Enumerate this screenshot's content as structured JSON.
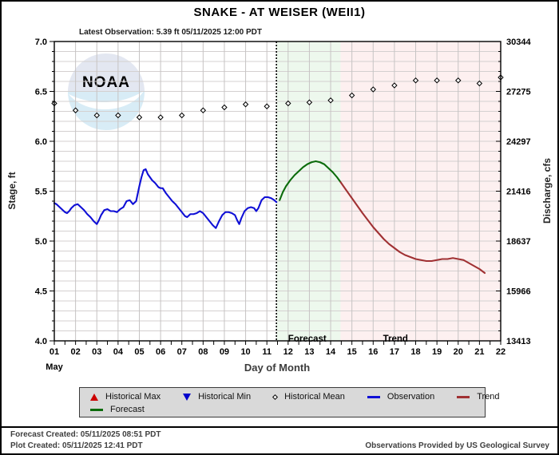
{
  "header": {
    "title": "SNAKE - AT WEISER  (WEII1)",
    "latest_observation": "Latest Observation: 5.39 ft 05/11/2025 12:00 PDT"
  },
  "chart_data": {
    "type": "line",
    "title": "SNAKE - AT WEISER  (WEII1)",
    "xlabel": "Day of Month",
    "month_label": "May",
    "ylabel_left": "Stage, ft",
    "ylabel_right": "Discharge, cfs",
    "xlim": [
      1,
      22
    ],
    "ylim": [
      4.0,
      7.0
    ],
    "grid": true,
    "x_tick_labels": [
      "01",
      "02",
      "03",
      "04",
      "05",
      "06",
      "07",
      "08",
      "09",
      "10",
      "11",
      "12",
      "13",
      "14",
      "15",
      "16",
      "17",
      "18",
      "19",
      "20",
      "21",
      "22"
    ],
    "stage_tick_labels": [
      "7.0",
      "6.5",
      "6.0",
      "5.5",
      "5.0",
      "4.5",
      "4.0"
    ],
    "discharge_tick_labels": [
      "30344",
      "27275",
      "24297",
      "21416",
      "18637",
      "15966",
      "13413"
    ],
    "minor_stage_step": 0.1,
    "minor_day_step": 0.5,
    "divider_day": 11.45,
    "regions": [
      {
        "name": "forecast",
        "label": "Forecast",
        "start": 11.45,
        "end": 14.47,
        "label_day": 12.9,
        "color": "#edf8ed"
      },
      {
        "name": "trend",
        "label": "Trend",
        "start": 14.47,
        "end": 22,
        "label_day": 17.05,
        "color": "#fdf0f0"
      }
    ],
    "series": [
      {
        "name": "Observation",
        "type": "line",
        "color": "#0f0fd6",
        "points": [
          [
            1.0,
            5.38
          ],
          [
            1.1,
            5.37
          ],
          [
            1.2,
            5.35
          ],
          [
            1.35,
            5.32
          ],
          [
            1.5,
            5.29
          ],
          [
            1.6,
            5.28
          ],
          [
            1.7,
            5.3
          ],
          [
            1.8,
            5.33
          ],
          [
            1.95,
            5.36
          ],
          [
            2.1,
            5.37
          ],
          [
            2.25,
            5.34
          ],
          [
            2.4,
            5.31
          ],
          [
            2.55,
            5.27
          ],
          [
            2.7,
            5.24
          ],
          [
            2.85,
            5.2
          ],
          [
            3.0,
            5.17
          ],
          [
            3.1,
            5.21
          ],
          [
            3.2,
            5.26
          ],
          [
            3.35,
            5.31
          ],
          [
            3.5,
            5.32
          ],
          [
            3.65,
            5.3
          ],
          [
            3.8,
            5.3
          ],
          [
            3.95,
            5.29
          ],
          [
            4.1,
            5.32
          ],
          [
            4.25,
            5.34
          ],
          [
            4.4,
            5.4
          ],
          [
            4.55,
            5.41
          ],
          [
            4.7,
            5.37
          ],
          [
            4.85,
            5.4
          ],
          [
            5.0,
            5.55
          ],
          [
            5.1,
            5.64
          ],
          [
            5.2,
            5.71
          ],
          [
            5.3,
            5.72
          ],
          [
            5.4,
            5.67
          ],
          [
            5.5,
            5.64
          ],
          [
            5.6,
            5.61
          ],
          [
            5.75,
            5.58
          ],
          [
            5.9,
            5.54
          ],
          [
            6.0,
            5.53
          ],
          [
            6.1,
            5.53
          ],
          [
            6.25,
            5.48
          ],
          [
            6.4,
            5.44
          ],
          [
            6.55,
            5.4
          ],
          [
            6.7,
            5.37
          ],
          [
            6.85,
            5.33
          ],
          [
            7.0,
            5.29
          ],
          [
            7.15,
            5.25
          ],
          [
            7.25,
            5.24
          ],
          [
            7.4,
            5.27
          ],
          [
            7.55,
            5.27
          ],
          [
            7.7,
            5.28
          ],
          [
            7.85,
            5.3
          ],
          [
            8.0,
            5.28
          ],
          [
            8.15,
            5.24
          ],
          [
            8.3,
            5.2
          ],
          [
            8.45,
            5.16
          ],
          [
            8.6,
            5.13
          ],
          [
            8.75,
            5.2
          ],
          [
            8.9,
            5.26
          ],
          [
            9.05,
            5.29
          ],
          [
            9.2,
            5.29
          ],
          [
            9.35,
            5.28
          ],
          [
            9.5,
            5.26
          ],
          [
            9.6,
            5.21
          ],
          [
            9.7,
            5.17
          ],
          [
            9.8,
            5.23
          ],
          [
            9.95,
            5.3
          ],
          [
            10.1,
            5.33
          ],
          [
            10.25,
            5.34
          ],
          [
            10.4,
            5.33
          ],
          [
            10.5,
            5.3
          ],
          [
            10.6,
            5.33
          ],
          [
            10.75,
            5.41
          ],
          [
            10.9,
            5.44
          ],
          [
            11.05,
            5.44
          ],
          [
            11.2,
            5.43
          ],
          [
            11.35,
            5.41
          ],
          [
            11.45,
            5.39
          ]
        ]
      },
      {
        "name": "Forecast",
        "type": "line",
        "color": "#0b6b0b",
        "points": [
          [
            11.6,
            5.41
          ],
          [
            11.75,
            5.49
          ],
          [
            11.9,
            5.55
          ],
          [
            12.1,
            5.61
          ],
          [
            12.3,
            5.66
          ],
          [
            12.5,
            5.7
          ],
          [
            12.7,
            5.74
          ],
          [
            12.9,
            5.77
          ],
          [
            13.1,
            5.79
          ],
          [
            13.3,
            5.8
          ],
          [
            13.5,
            5.79
          ],
          [
            13.7,
            5.77
          ],
          [
            13.9,
            5.73
          ],
          [
            14.1,
            5.69
          ],
          [
            14.3,
            5.64
          ],
          [
            14.47,
            5.59
          ]
        ]
      },
      {
        "name": "Trend",
        "type": "line",
        "color": "#a03133",
        "points": [
          [
            14.47,
            5.59
          ],
          [
            14.7,
            5.52
          ],
          [
            14.9,
            5.46
          ],
          [
            15.1,
            5.4
          ],
          [
            15.3,
            5.34
          ],
          [
            15.5,
            5.28
          ],
          [
            15.75,
            5.21
          ],
          [
            16.0,
            5.14
          ],
          [
            16.25,
            5.08
          ],
          [
            16.5,
            5.02
          ],
          [
            16.75,
            4.97
          ],
          [
            17.0,
            4.93
          ],
          [
            17.25,
            4.89
          ],
          [
            17.5,
            4.86
          ],
          [
            17.75,
            4.84
          ],
          [
            18.0,
            4.82
          ],
          [
            18.25,
            4.81
          ],
          [
            18.5,
            4.8
          ],
          [
            18.75,
            4.8
          ],
          [
            19.0,
            4.81
          ],
          [
            19.25,
            4.82
          ],
          [
            19.5,
            4.82
          ],
          [
            19.75,
            4.83
          ],
          [
            20.0,
            4.82
          ],
          [
            20.25,
            4.81
          ],
          [
            20.5,
            4.78
          ],
          [
            20.75,
            4.75
          ],
          [
            21.0,
            4.72
          ],
          [
            21.25,
            4.68
          ]
        ]
      },
      {
        "name": "Historical Mean",
        "type": "diamond-markers",
        "color": "#000000",
        "points": [
          [
            1,
            6.38
          ],
          [
            2,
            6.31
          ],
          [
            3,
            6.26
          ],
          [
            4,
            6.26
          ],
          [
            5,
            6.24
          ],
          [
            6,
            6.24
          ],
          [
            7,
            6.26
          ],
          [
            8,
            6.31
          ],
          [
            9,
            6.34
          ],
          [
            10,
            6.37
          ],
          [
            11,
            6.35
          ],
          [
            12,
            6.38
          ],
          [
            13,
            6.39
          ],
          [
            14,
            6.41
          ],
          [
            15,
            6.46
          ],
          [
            16,
            6.52
          ],
          [
            17,
            6.56
          ],
          [
            18,
            6.61
          ],
          [
            19,
            6.61
          ],
          [
            20,
            6.61
          ],
          [
            21,
            6.58
          ],
          [
            22,
            6.64
          ]
        ]
      }
    ],
    "palette": {
      "grid_vertical": "#c6c3c3",
      "grid_horizontal": "#d4d0d0",
      "plot_border": "#000000",
      "divider": "#000000",
      "logo_top": "#e3e7f1",
      "logo_bottom": "#d8ecf6"
    },
    "logo_text": "NOAA"
  },
  "legend": {
    "items": [
      {
        "label": "Historical Max",
        "marker": "triangle-up",
        "color": "#cc0000"
      },
      {
        "label": "Historical Min",
        "marker": "triangle-down",
        "color": "#0000cc"
      },
      {
        "label": "Historical Mean",
        "marker": "diamond",
        "color": "#000000"
      },
      {
        "label": "Observation",
        "marker": "line",
        "color": "#0f0fd6"
      },
      {
        "label": "Trend",
        "marker": "line",
        "color": "#a03133"
      },
      {
        "label": "Forecast",
        "marker": "line",
        "color": "#0b6b0b"
      }
    ]
  },
  "footer": {
    "forecast_created": "Forecast Created: 05/11/2025 08:51 PDT",
    "plot_created": "Plot Created: 05/11/2025 12:41 PDT",
    "credit": "Observations Provided by US Geological Survey"
  }
}
